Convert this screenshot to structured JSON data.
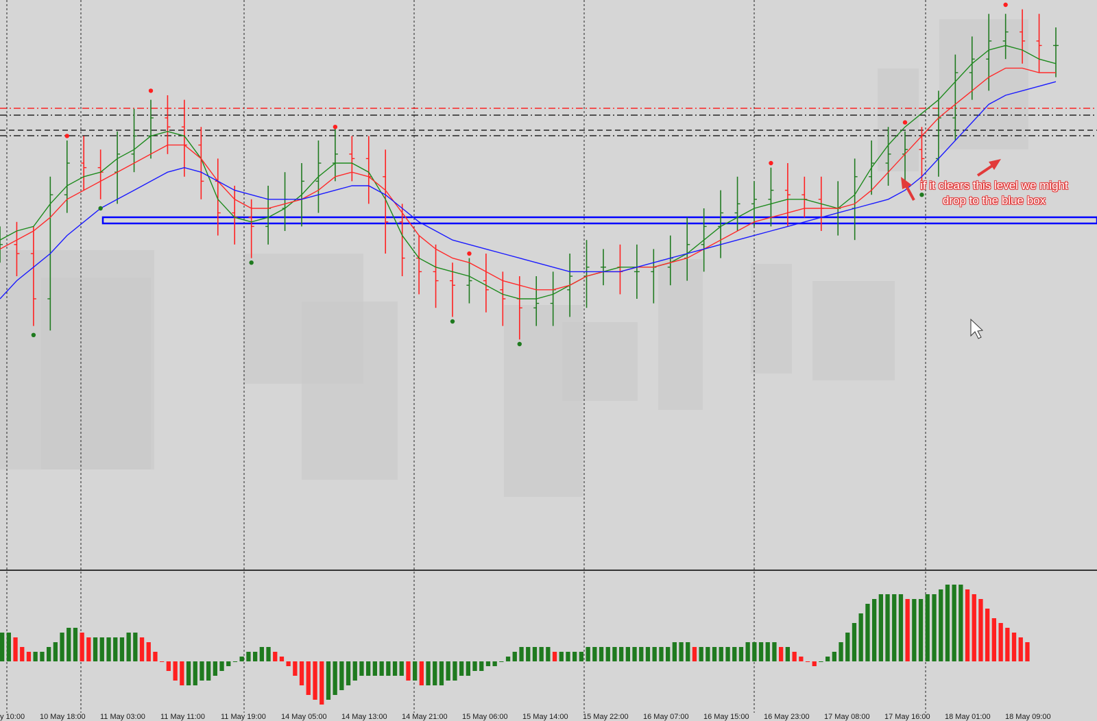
{
  "colors": {
    "background": "#d6d6d6",
    "bull_bar": "#1f7a1f",
    "bear_bar": "#ff2020",
    "ma_fast": "#1d8a1d",
    "ma_mid": "#ff2a2a",
    "ma_slow": "#1a1aff",
    "box_fill": "#c8c8c8",
    "level_blue": "#0000ff",
    "level_red": "#ff0000",
    "level_black": "#000000",
    "annotation": "#e23a3a"
  },
  "annotation": {
    "text": "if it clears this level we might drop to the blue box"
  },
  "chart_data": [
    {
      "type": "ohlc",
      "panel": "main",
      "x_ticks": [
        "y 10:00",
        "10 May 18:00",
        "11 May 03:00",
        "11 May 11:00",
        "11 May 19:00",
        "14 May 05:00",
        "14 May 13:00",
        "14 May 21:00",
        "15 May 06:00",
        "15 May 14:00",
        "15 May 22:00",
        "16 May 07:00",
        "16 May 15:00",
        "16 May 23:00",
        "17 May 08:00",
        "17 May 16:00",
        "18 May 01:00",
        "18 May 09:00"
      ],
      "grid": "vertical dashed separators",
      "series": [
        {
          "name": "",
          "role": "price",
          "values": [
            52,
            50,
            40,
            63,
            70,
            69,
            68,
            72,
            76,
            80,
            78,
            74,
            66,
            59,
            58,
            56,
            60,
            62,
            66,
            70,
            72,
            71,
            67,
            57,
            49,
            46,
            44,
            43,
            44,
            42,
            40,
            38,
            39,
            42,
            45,
            47,
            47,
            46,
            46,
            47,
            49,
            52,
            56,
            59,
            61,
            62,
            64,
            63,
            62,
            60,
            60,
            67,
            70,
            72,
            73,
            71,
            80,
            90,
            93,
            97,
            99,
            97,
            96,
            96
          ]
        },
        {
          "name": "",
          "role": "ma_fast",
          "values": [
            53,
            55,
            56,
            61,
            65,
            67,
            68,
            71,
            73,
            76,
            77,
            76,
            71,
            62,
            58,
            57,
            58,
            60,
            63,
            67,
            70,
            70,
            68,
            62,
            54,
            49,
            47,
            46,
            45,
            43,
            41,
            40,
            40,
            41,
            43,
            45,
            46,
            47,
            47,
            47,
            48,
            50,
            53,
            56,
            58,
            60,
            61,
            62,
            62,
            61,
            60,
            63,
            69,
            74,
            78,
            81,
            84,
            88,
            92,
            95,
            96,
            95,
            93,
            92
          ]
        },
        {
          "name": "",
          "role": "ma_mid",
          "values": [
            51,
            53,
            55,
            58,
            62,
            64,
            66,
            68,
            70,
            72,
            74,
            74,
            71,
            66,
            62,
            60,
            60,
            61,
            62,
            64,
            67,
            68,
            67,
            64,
            59,
            54,
            51,
            49,
            48,
            46,
            44,
            43,
            42,
            42,
            43,
            45,
            46,
            46,
            47,
            47,
            48,
            49,
            51,
            53,
            55,
            57,
            58,
            59,
            60,
            60,
            60,
            61,
            64,
            68,
            72,
            76,
            80,
            83,
            86,
            89,
            91,
            91,
            90,
            90
          ]
        },
        {
          "name": "",
          "role": "ma_slow",
          "values": [
            40,
            44,
            47,
            50,
            54,
            57,
            60,
            62,
            64,
            66,
            68,
            69,
            68,
            66,
            64,
            63,
            62,
            62,
            62,
            63,
            64,
            65,
            65,
            63,
            60,
            57,
            55,
            53,
            52,
            51,
            50,
            49,
            48,
            47,
            46,
            46,
            46,
            46,
            47,
            48,
            49,
            50,
            51,
            52,
            53,
            54,
            55,
            56,
            57,
            58,
            59,
            60,
            61,
            62,
            64,
            67,
            71,
            75,
            79,
            83,
            85,
            86,
            87,
            88
          ]
        }
      ],
      "levels": [
        {
          "name": "",
          "style": "dash-dot",
          "color": "red"
        },
        {
          "name": "",
          "style": "dash-dot",
          "color": "black"
        },
        {
          "name": "",
          "style": "dash",
          "color": "black"
        },
        {
          "name": "",
          "style": "dash-dot",
          "color": "black"
        },
        {
          "name": "",
          "style": "box",
          "color": "blue"
        }
      ]
    },
    {
      "type": "bar",
      "panel": "oscillator",
      "values": [
        6,
        6,
        5,
        3,
        2,
        2,
        2,
        3,
        4,
        6,
        7,
        7,
        6,
        5,
        5,
        5,
        5,
        5,
        5,
        6,
        6,
        5,
        4,
        2,
        0,
        -2,
        -4,
        -5,
        -5,
        -5,
        -4,
        -4,
        -3,
        -2,
        -1,
        0,
        1,
        2,
        2,
        3,
        3,
        2,
        1,
        -1,
        -3,
        -5,
        -7,
        -8,
        -9,
        -8,
        -7,
        -6,
        -5,
        -4,
        -3,
        -3,
        -3,
        -3,
        -3,
        -3,
        -3,
        -4,
        -4,
        -5,
        -5,
        -5,
        -5,
        -4,
        -4,
        -3,
        -3,
        -2,
        -2,
        -1,
        -1,
        0,
        1,
        2,
        3,
        3,
        3,
        3,
        3,
        2,
        2,
        2,
        2,
        2,
        3,
        3,
        3,
        3,
        3,
        3,
        3,
        3,
        3,
        3,
        3,
        3,
        3,
        4,
        4,
        4,
        3,
        3,
        3,
        3,
        3,
        3,
        3,
        3,
        4,
        4,
        4,
        4,
        4,
        3,
        3,
        2,
        1,
        0,
        -1,
        0,
        1,
        2,
        4,
        6,
        8,
        10,
        12,
        13,
        14,
        14,
        14,
        14,
        13,
        13,
        13,
        14,
        14,
        15,
        16,
        16,
        16,
        15,
        14,
        13,
        11,
        9,
        8,
        7,
        6,
        5,
        4
      ]
    }
  ]
}
